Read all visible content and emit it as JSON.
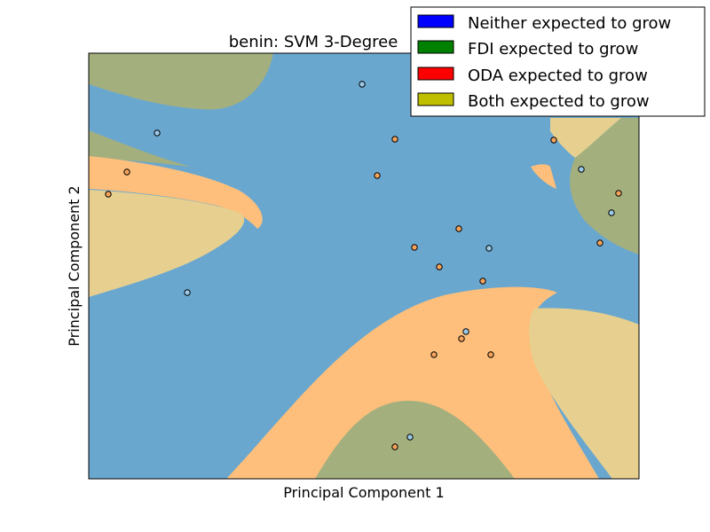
{
  "chart_data": {
    "type": "scatter",
    "title": "benin: SVM 3-Degree",
    "xlabel": "Principal Component 1",
    "ylabel": "Principal Component 2",
    "xlim": [
      0,
      620
    ],
    "ylim": [
      0,
      480
    ],
    "ticks": "none",
    "grid": false,
    "legend_position": "top-right",
    "legend": [
      {
        "label": "Neither expected to grow",
        "color": "#0000ff"
      },
      {
        "label": "FDI expected to grow",
        "color": "#008000"
      },
      {
        "label": "ODA expected to grow",
        "color": "#ff0000"
      },
      {
        "label": "Both expected to grow",
        "color": "#bfbf00"
      }
    ],
    "region_colors": {
      "neither": "#6aa7cf",
      "fdi": "#a4af7e",
      "oda": "#fdbf7b",
      "both": "#e7d08f"
    },
    "point_colors": {
      "neither": "#9ccae9",
      "oda": "#f5a35a"
    },
    "points": [
      {
        "x": 308,
        "y": 445,
        "class": "neither"
      },
      {
        "x": 77,
        "y": 390,
        "class": "neither"
      },
      {
        "x": 345,
        "y": 383,
        "class": "oda"
      },
      {
        "x": 524,
        "y": 382,
        "class": "oda"
      },
      {
        "x": 43,
        "y": 346,
        "class": "oda"
      },
      {
        "x": 325,
        "y": 342,
        "class": "oda"
      },
      {
        "x": 555,
        "y": 349,
        "class": "neither"
      },
      {
        "x": 22,
        "y": 321,
        "class": "oda"
      },
      {
        "x": 597,
        "y": 322,
        "class": "oda"
      },
      {
        "x": 589,
        "y": 300,
        "class": "neither"
      },
      {
        "x": 417,
        "y": 282,
        "class": "oda"
      },
      {
        "x": 367,
        "y": 261,
        "class": "oda"
      },
      {
        "x": 451,
        "y": 260,
        "class": "neither"
      },
      {
        "x": 576,
        "y": 266,
        "class": "oda"
      },
      {
        "x": 395,
        "y": 239,
        "class": "oda"
      },
      {
        "x": 444,
        "y": 223,
        "class": "oda"
      },
      {
        "x": 111,
        "y": 210,
        "class": "neither"
      },
      {
        "x": 425,
        "y": 166,
        "class": "neither"
      },
      {
        "x": 420,
        "y": 158,
        "class": "oda"
      },
      {
        "x": 389,
        "y": 140,
        "class": "oda"
      },
      {
        "x": 453,
        "y": 140,
        "class": "oda"
      },
      {
        "x": 362,
        "y": 47,
        "class": "neither"
      },
      {
        "x": 345,
        "y": 36,
        "class": "oda"
      }
    ]
  }
}
